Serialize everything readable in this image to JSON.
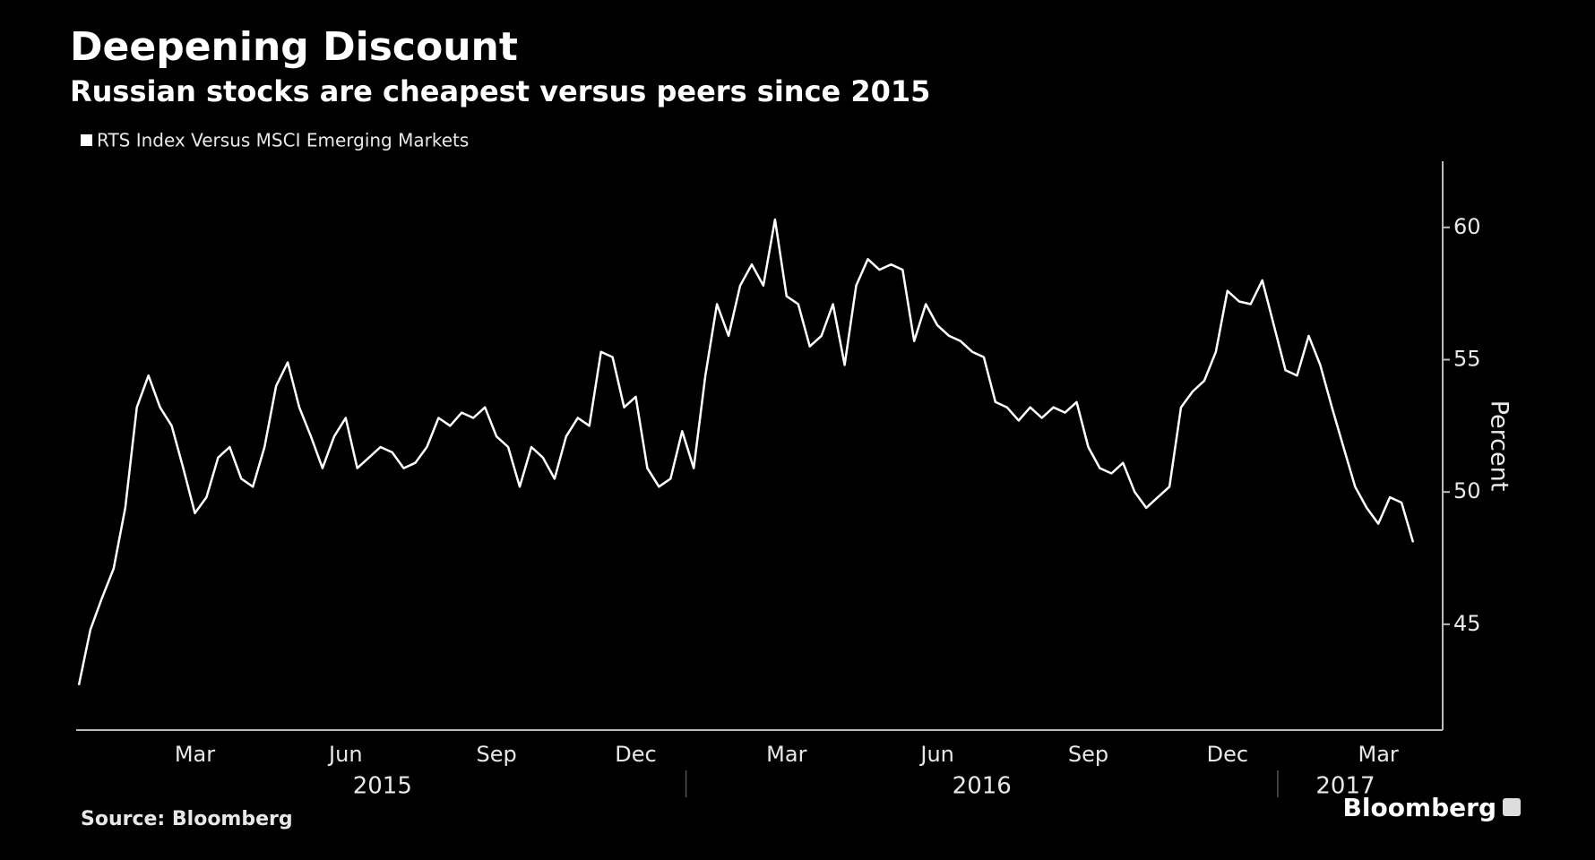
{
  "chart_data": {
    "type": "line",
    "title": "Deepening Discount",
    "subtitle": "Russian stocks are cheapest versus peers since 2015",
    "y_axis_label": "Percent",
    "source": "Source: Bloomberg",
    "brand": "Bloomberg",
    "categories": [
      null,
      null,
      null,
      null,
      null,
      null,
      null,
      null,
      null,
      null,
      "Mar",
      null,
      null,
      null,
      null,
      null,
      null,
      null,
      null,
      null,
      null,
      null,
      null,
      "Jun",
      null,
      null,
      null,
      null,
      null,
      null,
      null,
      null,
      null,
      null,
      null,
      null,
      "Sep",
      null,
      null,
      null,
      null,
      null,
      null,
      null,
      null,
      null,
      null,
      null,
      "Dec",
      null,
      null,
      null,
      null,
      null,
      null,
      null,
      null,
      null,
      null,
      null,
      null,
      "Mar",
      null,
      null,
      null,
      null,
      null,
      null,
      null,
      null,
      null,
      null,
      null,
      null,
      "Jun",
      null,
      null,
      null,
      null,
      null,
      null,
      null,
      null,
      null,
      null,
      null,
      null,
      "Sep",
      null,
      null,
      null,
      null,
      null,
      null,
      null,
      null,
      null,
      null,
      null,
      "Dec",
      null,
      null,
      null,
      null,
      null,
      null,
      null,
      null,
      null,
      null,
      null,
      null,
      "Mar",
      null,
      null,
      null
    ],
    "x_groups": [
      "2015",
      "2016",
      "2017"
    ],
    "series": [
      {
        "name": "RTS Index Versus MSCI Emerging Markets",
        "color": "#ffffff",
        "values": [
          42.7,
          44.8,
          46.0,
          47.1,
          49.4,
          53.2,
          54.4,
          53.2,
          52.5,
          50.9,
          49.2,
          49.8,
          51.3,
          51.7,
          50.5,
          50.2,
          51.7,
          54.0,
          54.9,
          53.2,
          52.1,
          50.9,
          52.1,
          52.8,
          50.9,
          51.3,
          51.7,
          51.5,
          50.9,
          51.1,
          51.7,
          52.8,
          52.5,
          53.0,
          52.8,
          53.2,
          52.1,
          51.7,
          50.2,
          51.7,
          51.3,
          50.5,
          52.1,
          52.8,
          52.5,
          55.3,
          55.1,
          53.2,
          53.6,
          50.9,
          50.2,
          50.5,
          52.3,
          50.9,
          54.4,
          57.1,
          55.9,
          57.8,
          58.6,
          57.8,
          60.3,
          57.4,
          57.1,
          55.5,
          55.9,
          57.1,
          54.8,
          57.8,
          58.8,
          58.4,
          58.6,
          58.4,
          55.7,
          57.1,
          56.3,
          55.9,
          55.7,
          55.3,
          55.1,
          53.4,
          53.2,
          52.7,
          53.2,
          52.8,
          53.2,
          53.0,
          53.4,
          51.7,
          50.9,
          50.7,
          51.1,
          50.0,
          49.4,
          49.8,
          50.2,
          53.2,
          53.8,
          54.2,
          55.3,
          57.6,
          57.2,
          57.1,
          58.0,
          56.3,
          54.6,
          54.4,
          55.9,
          54.8,
          53.2,
          51.7,
          50.2,
          49.4,
          48.8,
          49.8,
          49.6,
          48.1
        ]
      }
    ],
    "ylim": [
      41,
      62.5
    ],
    "yticks": [
      45,
      50,
      55,
      60
    ],
    "y_axis_side": "right",
    "grid": false
  }
}
